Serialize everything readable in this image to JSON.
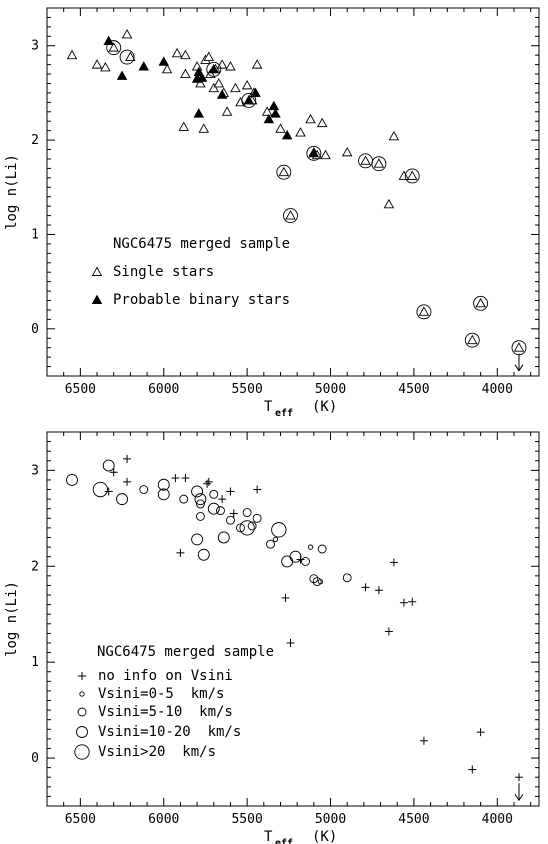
{
  "chart_data": [
    {
      "type": "scatter",
      "title": "NGC6475 merged sample",
      "xlabel": "T",
      "xlabel_sub": "eff",
      "xlabel_unit": "(K)",
      "ylabel": "log n(Li)",
      "xlim": [
        6700,
        3750
      ],
      "ylim": [
        -0.5,
        3.4
      ],
      "x_ticks": [
        6500,
        6000,
        5500,
        5000,
        4500,
        4000
      ],
      "y_ticks": [
        0,
        1,
        2,
        3
      ],
      "legend_location": "lower-left",
      "series": [
        {
          "name": "Single stars",
          "marker": "open-triangle",
          "points": [
            [
              6550,
              2.9
            ],
            [
              6400,
              2.8
            ],
            [
              6350,
              2.77
            ],
            [
              6300,
              2.98
            ],
            [
              6220,
              3.12
            ],
            [
              6200,
              2.88
            ],
            [
              5980,
              2.75
            ],
            [
              5920,
              2.92
            ],
            [
              5870,
              2.9
            ],
            [
              5880,
              2.14
            ],
            [
              5870,
              2.7
            ],
            [
              5800,
              2.78
            ],
            [
              5780,
              2.6
            ],
            [
              5760,
              2.12
            ],
            [
              5750,
              2.85
            ],
            [
              5730,
              2.88
            ],
            [
              5720,
              2.7
            ],
            [
              5700,
              2.55
            ],
            [
              5690,
              2.75
            ],
            [
              5670,
              2.6
            ],
            [
              5650,
              2.8
            ],
            [
              5640,
              2.5
            ],
            [
              5620,
              2.3
            ],
            [
              5600,
              2.78
            ],
            [
              5570,
              2.55
            ],
            [
              5540,
              2.4
            ],
            [
              5500,
              2.58
            ],
            [
              5470,
              2.42
            ],
            [
              5460,
              2.5
            ],
            [
              5440,
              2.8
            ],
            [
              5380,
              2.3
            ],
            [
              5300,
              2.12
            ],
            [
              5280,
              1.66
            ],
            [
              5240,
              1.2
            ],
            [
              5180,
              2.08
            ],
            [
              5120,
              2.22
            ],
            [
              5100,
              1.87
            ],
            [
              5080,
              1.84
            ],
            [
              5050,
              2.18
            ],
            [
              5030,
              1.84
            ],
            [
              4900,
              1.87
            ],
            [
              4790,
              1.78
            ],
            [
              4710,
              1.75
            ],
            [
              4620,
              2.04
            ],
            [
              4560,
              1.62
            ],
            [
              4510,
              1.62
            ],
            [
              4650,
              1.32
            ],
            [
              4440,
              0.18
            ],
            [
              4150,
              -0.12
            ],
            [
              4100,
              0.27
            ],
            [
              3870,
              -0.2
            ]
          ]
        },
        {
          "name": "Probable binary stars",
          "marker": "filled-triangle",
          "points": [
            [
              6330,
              3.05
            ],
            [
              6250,
              2.68
            ],
            [
              6120,
              2.78
            ],
            [
              6000,
              2.83
            ],
            [
              5800,
              2.65
            ],
            [
              5790,
              2.28
            ],
            [
              5790,
              2.72
            ],
            [
              5770,
              2.66
            ],
            [
              5700,
              2.75
            ],
            [
              5650,
              2.48
            ],
            [
              5490,
              2.42
            ],
            [
              5450,
              2.5
            ],
            [
              5370,
              2.22
            ],
            [
              5340,
              2.36
            ],
            [
              5330,
              2.28
            ],
            [
              5260,
              2.05
            ],
            [
              5100,
              1.86
            ]
          ]
        }
      ],
      "circled_points": [
        [
          6300,
          2.98
        ],
        [
          6220,
          2.88
        ],
        [
          5700,
          2.75
        ],
        [
          5490,
          2.42
        ],
        [
          5280,
          1.66
        ],
        [
          5240,
          1.2
        ],
        [
          5100,
          1.86
        ],
        [
          4790,
          1.78
        ],
        [
          4710,
          1.75
        ],
        [
          4510,
          1.62
        ],
        [
          4440,
          0.18
        ],
        [
          4150,
          -0.12
        ],
        [
          4100,
          0.27
        ],
        [
          3870,
          -0.2
        ]
      ],
      "upper_limits": [
        [
          3870,
          -0.2
        ]
      ]
    },
    {
      "type": "scatter",
      "title": "NGC6475 merged sample",
      "xlabel": "T",
      "xlabel_sub": "eff",
      "xlabel_unit": "(K)",
      "ylabel": "log n(Li)",
      "xlim": [
        6700,
        3750
      ],
      "ylim": [
        -0.5,
        3.4
      ],
      "x_ticks": [
        6500,
        6000,
        5500,
        5000,
        4500,
        4000
      ],
      "y_ticks": [
        0,
        1,
        2,
        3
      ],
      "legend_location": "lower-left",
      "series": [
        {
          "name": "no info on Vsini",
          "marker": "plus",
          "points": [
            [
              6330,
              2.78
            ],
            [
              6300,
              2.98
            ],
            [
              6220,
              3.12
            ],
            [
              6220,
              2.88
            ],
            [
              5930,
              2.92
            ],
            [
              5900,
              2.14
            ],
            [
              5870,
              2.92
            ],
            [
              5740,
              2.86
            ],
            [
              5730,
              2.88
            ],
            [
              5650,
              2.7
            ],
            [
              5600,
              2.78
            ],
            [
              5580,
              2.55
            ],
            [
              5440,
              2.8
            ],
            [
              5270,
              1.67
            ],
            [
              5240,
              1.2
            ],
            [
              5180,
              2.07
            ],
            [
              4790,
              1.78
            ],
            [
              4710,
              1.75
            ],
            [
              4620,
              2.04
            ],
            [
              4560,
              1.62
            ],
            [
              4510,
              1.63
            ],
            [
              4650,
              1.32
            ],
            [
              4440,
              0.18
            ],
            [
              4150,
              -0.12
            ],
            [
              4100,
              0.27
            ],
            [
              3870,
              -0.2
            ]
          ]
        },
        {
          "name": "Vsini=0-5  km/s",
          "marker": "circle-xs",
          "points": [
            [
              5330,
              2.28
            ],
            [
              5120,
              2.2
            ],
            [
              5060,
              1.84
            ]
          ]
        },
        {
          "name": "Vsini=5-10  km/s",
          "marker": "circle-s",
          "points": [
            [
              6120,
              2.8
            ],
            [
              5880,
              2.7
            ],
            [
              5780,
              2.52
            ],
            [
              5780,
              2.65
            ],
            [
              5700,
              2.75
            ],
            [
              5660,
              2.58
            ],
            [
              5600,
              2.48
            ],
            [
              5540,
              2.4
            ],
            [
              5500,
              2.56
            ],
            [
              5470,
              2.42
            ],
            [
              5440,
              2.5
            ],
            [
              5360,
              2.23
            ],
            [
              5150,
              2.05
            ],
            [
              5100,
              1.87
            ],
            [
              5080,
              1.84
            ],
            [
              5050,
              2.18
            ],
            [
              4900,
              1.88
            ]
          ]
        },
        {
          "name": "Vsini=10-20  km/s",
          "marker": "circle-m",
          "points": [
            [
              6550,
              2.9
            ],
            [
              6330,
              3.05
            ],
            [
              6250,
              2.7
            ],
            [
              6000,
              2.85
            ],
            [
              6000,
              2.75
            ],
            [
              5800,
              2.78
            ],
            [
              5800,
              2.28
            ],
            [
              5780,
              2.7
            ],
            [
              5760,
              2.12
            ],
            [
              5700,
              2.6
            ],
            [
              5640,
              2.3
            ],
            [
              5260,
              2.05
            ],
            [
              5210,
              2.1
            ]
          ]
        },
        {
          "name": "Vsini>20  km/s",
          "marker": "circle-l",
          "points": [
            [
              6380,
              2.8
            ],
            [
              5500,
              2.4
            ],
            [
              5310,
              2.38
            ]
          ]
        }
      ],
      "upper_limits": [
        [
          3870,
          -0.2
        ]
      ]
    }
  ]
}
